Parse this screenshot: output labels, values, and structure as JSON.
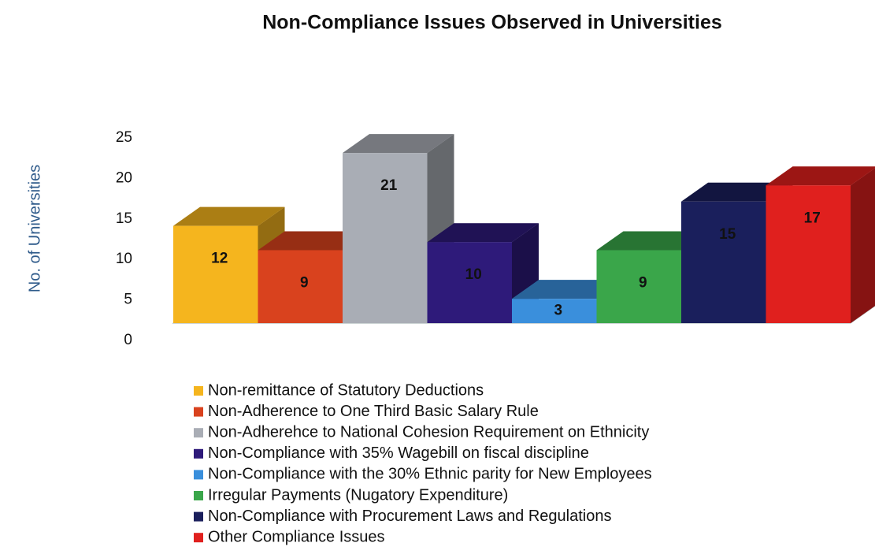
{
  "chart_data": {
    "type": "bar3d",
    "title": "Non-Compliance Issues Observed in Universities",
    "y_label": "No. of Universities",
    "ylim": [
      0,
      25
    ],
    "yticks": [
      0,
      5,
      10,
      15,
      20,
      25
    ],
    "series": [
      {
        "name": "Non-remittance of Statutory Deductions",
        "color": "#f5b51e",
        "values": [
          12
        ]
      },
      {
        "name": "Non-Adherence to One Third Basic Salary Rule",
        "color": "#d9421e",
        "values": [
          9
        ]
      },
      {
        "name": "Non-Adherehce to National Cohesion Requirement on Ethnicity",
        "color": "#a9adb5",
        "values": [
          21
        ]
      },
      {
        "name": "Non-Compliance with 35% Wagebill on fiscal discipline",
        "color": "#2e1a7a",
        "values": [
          10
        ]
      },
      {
        "name": "Non-Compliance with the 30% Ethnic parity for New Employees",
        "color": "#3a8fdc",
        "values": [
          3
        ]
      },
      {
        "name": "Irregular Payments (Nugatory Expenditure)",
        "color": "#3aa64a",
        "values": [
          9
        ]
      },
      {
        "name": "Non-Compliance with Procurement Laws and Regulations",
        "color": "#1a1f5c",
        "values": [
          15
        ]
      },
      {
        "name": "Other Compliance Issues",
        "color": "#e0201e",
        "values": [
          17
        ]
      }
    ]
  }
}
